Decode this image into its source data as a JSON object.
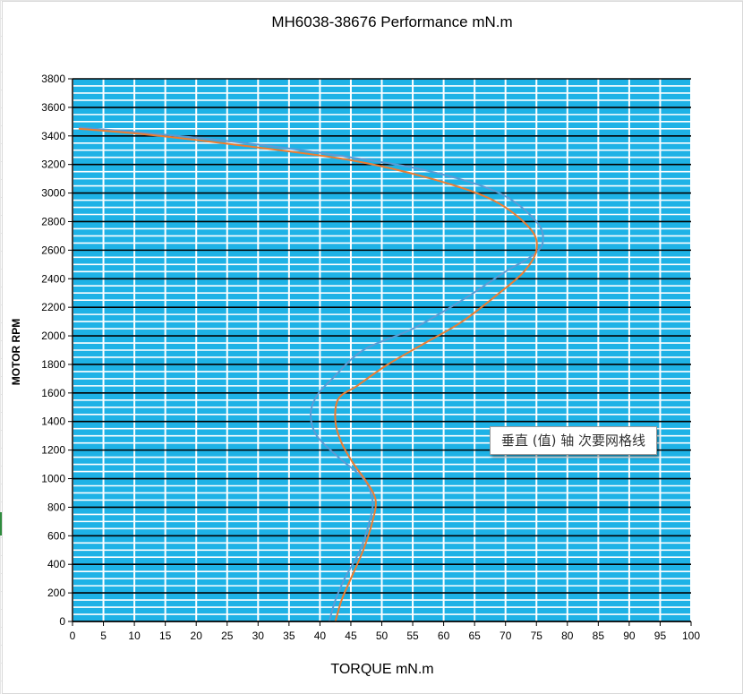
{
  "chart_data": {
    "type": "line",
    "title": "MH6038-38676   Performance mN.m",
    "xlabel": "TORQUE mN.m",
    "ylabel": "MOTOR RPM",
    "xlim": [
      0,
      100
    ],
    "ylim": [
      0,
      3800
    ],
    "x_ticks": [
      0,
      5,
      10,
      15,
      20,
      25,
      30,
      35,
      40,
      45,
      50,
      55,
      60,
      65,
      70,
      75,
      80,
      85,
      90,
      95,
      100
    ],
    "y_ticks": [
      0,
      200,
      400,
      600,
      800,
      1000,
      1200,
      1400,
      1600,
      1800,
      2000,
      2200,
      2400,
      2600,
      2800,
      3000,
      3200,
      3400,
      3600,
      3800
    ],
    "grid": true,
    "plot_background": "#1eb2e6",
    "gridline_colors": {
      "major_horizontal": "#000000",
      "minor_horizontal": "#ffffff",
      "vertical": "#ffffff"
    },
    "legend": "none",
    "series": [
      {
        "color": "#5b9bd5",
        "points": [
          [
            41.5,
            0
          ],
          [
            42.5,
            150
          ],
          [
            44,
            300
          ],
          [
            46.5,
            500
          ],
          [
            48,
            700
          ],
          [
            48.5,
            850
          ],
          [
            47,
            1000
          ],
          [
            43,
            1150
          ],
          [
            39.5,
            1300
          ],
          [
            38.5,
            1450
          ],
          [
            39.5,
            1580
          ],
          [
            42,
            1700
          ],
          [
            47,
            1900
          ],
          [
            55,
            2050
          ],
          [
            63,
            2250
          ],
          [
            70,
            2450
          ],
          [
            74,
            2550
          ],
          [
            76,
            2650
          ],
          [
            75,
            2800
          ],
          [
            69,
            3000
          ],
          [
            58,
            3150
          ],
          [
            45,
            3250
          ],
          [
            28,
            3350
          ],
          [
            12,
            3420
          ],
          [
            1,
            3460
          ]
        ]
      },
      {
        "color": "#ed7d31",
        "points": [
          [
            42.5,
            0
          ],
          [
            43.5,
            150
          ],
          [
            45,
            300
          ],
          [
            47,
            500
          ],
          [
            48.5,
            700
          ],
          [
            49,
            850
          ],
          [
            47.5,
            980
          ],
          [
            45.5,
            1100
          ],
          [
            43.5,
            1250
          ],
          [
            42.5,
            1400
          ],
          [
            43,
            1560
          ],
          [
            46,
            1650
          ],
          [
            51,
            1800
          ],
          [
            57,
            1950
          ],
          [
            63,
            2100
          ],
          [
            69,
            2300
          ],
          [
            73,
            2450
          ],
          [
            75,
            2600
          ],
          [
            74,
            2750
          ],
          [
            68,
            2950
          ],
          [
            58,
            3100
          ],
          [
            45,
            3230
          ],
          [
            28,
            3330
          ],
          [
            12,
            3410
          ],
          [
            1,
            3450
          ]
        ]
      }
    ]
  },
  "tooltip": {
    "text": "垂直 (值) 轴 次要网格线"
  }
}
